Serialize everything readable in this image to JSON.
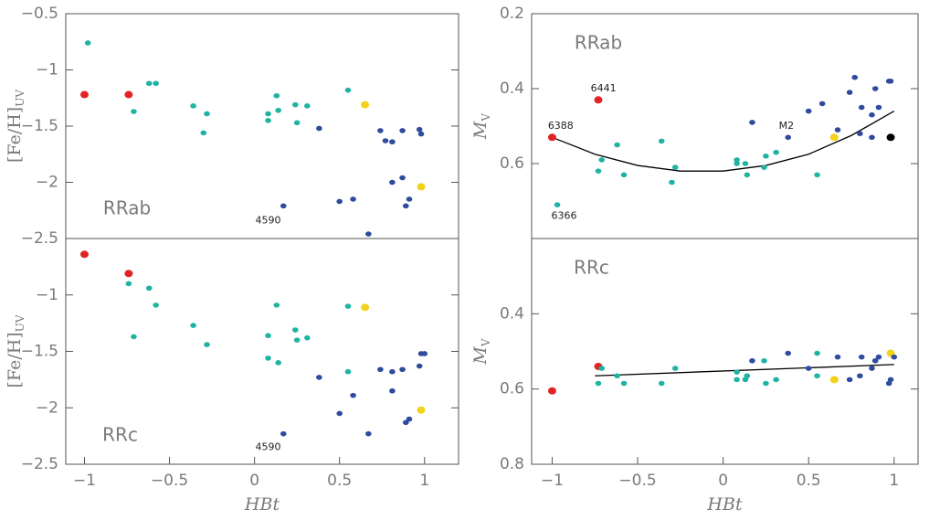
{
  "chart_data": [
    {
      "type": "scatter",
      "ylabel": "[Fe/H]",
      "ylabel_sub": "UV",
      "xlim": [
        -1.11,
        1.2
      ],
      "ylim": [
        -0.5,
        -2.5
      ],
      "yticks": [
        {
          "value": -0.5,
          "label": "−0.5"
        },
        {
          "value": -1,
          "label": "−1"
        },
        {
          "value": -1.5,
          "label": "−1.5"
        },
        {
          "value": -2,
          "label": "−2"
        },
        {
          "value": -2.5,
          "label": "−2.5"
        }
      ],
      "panel_label": {
        "text": "RRab",
        "x": -0.75,
        "y": -2.24
      },
      "annotations": [
        {
          "text": "4590",
          "x": 0.08,
          "y": -2.34
        }
      ],
      "series": [
        {
          "color": "#e02424",
          "x": [
            -1.0,
            -0.74
          ],
          "values": [
            -1.22,
            -1.22
          ]
        },
        {
          "color": "#1fb3a3",
          "x": [
            -0.98,
            -0.71,
            -0.62,
            -0.58,
            -0.36,
            -0.3,
            -0.28,
            0.08,
            0.08,
            0.13,
            0.14,
            0.24,
            0.25,
            0.31,
            0.55
          ],
          "values": [
            -0.76,
            -1.37,
            -1.12,
            -1.12,
            -1.32,
            -1.56,
            -1.39,
            -1.39,
            -1.45,
            -1.23,
            -1.36,
            -1.31,
            -1.47,
            -1.32,
            -1.18
          ]
        },
        {
          "color": "#f2d21a",
          "x": [
            0.65,
            0.98
          ],
          "values": [
            -1.31,
            -2.04
          ]
        },
        {
          "color": "#2e4b9e",
          "x": [
            0.38,
            0.17,
            0.5,
            0.58,
            0.67,
            0.74,
            0.77,
            0.81,
            0.81,
            0.87,
            0.87,
            0.89,
            0.91,
            0.97,
            0.98
          ],
          "values": [
            -1.52,
            -2.21,
            -2.17,
            -2.15,
            -2.46,
            -1.54,
            -1.63,
            -1.64,
            -2.0,
            -1.54,
            -1.96,
            -2.21,
            -2.15,
            -1.53,
            -1.57
          ]
        }
      ]
    },
    {
      "type": "scatter",
      "ylabel": "M",
      "ylabel_sub": "V",
      "xlim": [
        -1.12,
        1.14
      ],
      "ylim": [
        0.2,
        0.8
      ],
      "yticks": [
        0.2,
        0.4,
        0.6
      ],
      "panel_label": {
        "text": "RRab",
        "x": -0.73,
        "y": 0.28
      },
      "annotations": [
        {
          "text": "6388",
          "x": -0.95,
          "y": 0.5
        },
        {
          "text": "6441",
          "x": -0.7,
          "y": 0.4
        },
        {
          "text": "M2",
          "x": 0.37,
          "y": 0.5
        },
        {
          "text": "6366",
          "x": -0.93,
          "y": 0.74
        }
      ],
      "series": [
        {
          "color": "#e02424",
          "x": [
            -1.0,
            -0.73
          ],
          "values": [
            0.53,
            0.43
          ]
        },
        {
          "color": "#1fb3a3",
          "x": [
            -0.97,
            -0.73,
            -0.71,
            -0.62,
            -0.58,
            -0.36,
            -0.3,
            -0.28,
            0.08,
            0.08,
            0.13,
            0.14,
            0.24,
            0.25,
            0.31,
            0.55
          ],
          "values": [
            0.71,
            0.62,
            0.59,
            0.55,
            0.63,
            0.54,
            0.65,
            0.61,
            0.59,
            0.6,
            0.6,
            0.63,
            0.61,
            0.58,
            0.57,
            0.63
          ]
        },
        {
          "color": "#f2d21a",
          "x": [
            0.65
          ],
          "values": [
            0.53
          ]
        },
        {
          "color": "#2e4b9e",
          "x": [
            0.17,
            0.38,
            0.5,
            0.58,
            0.67,
            0.74,
            0.77,
            0.8,
            0.81,
            0.87,
            0.89,
            0.91,
            0.97,
            0.98,
            0.87
          ],
          "values": [
            0.49,
            0.53,
            0.46,
            0.44,
            0.51,
            0.41,
            0.37,
            0.52,
            0.45,
            0.47,
            0.4,
            0.45,
            0.38,
            0.38,
            0.53
          ]
        },
        {
          "color": "#000000",
          "x": [
            0.98
          ],
          "values": [
            0.53
          ]
        }
      ],
      "lines": [
        {
          "color": "#000000",
          "x": [
            -1.0,
            -0.75,
            -0.5,
            -0.25,
            0,
            0.25,
            0.5,
            0.75,
            1.0
          ],
          "values": [
            0.53,
            0.575,
            0.605,
            0.62,
            0.62,
            0.605,
            0.575,
            0.525,
            0.46
          ]
        }
      ]
    },
    {
      "type": "scatter",
      "ylabel": "[Fe/H]",
      "ylabel_sub": "UV",
      "xlabel": "HBt",
      "xlim": [
        -1.11,
        1.2
      ],
      "ylim": [
        -0.5,
        -2.5
      ],
      "xticks": [
        {
          "value": -1,
          "label": "−1"
        },
        {
          "value": -0.5,
          "label": "−0.5"
        },
        0,
        0.5,
        1
      ],
      "yticks": [
        {
          "value": -1,
          "label": "−1"
        },
        {
          "value": -1.5,
          "label": "−1.5"
        },
        {
          "value": -2,
          "label": "−2"
        },
        {
          "value": -2.5,
          "label": "−2.5"
        }
      ],
      "panel_label": {
        "text": "RRc",
        "x": -0.79,
        "y": -2.25
      },
      "annotations": [
        {
          "text": "4590",
          "x": 0.08,
          "y": -2.35
        }
      ],
      "series": [
        {
          "color": "#e02424",
          "x": [
            -1.0,
            -0.74
          ],
          "values": [
            -0.64,
            -0.81
          ]
        },
        {
          "color": "#1fb3a3",
          "x": [
            -0.74,
            -0.71,
            -0.62,
            -0.58,
            -0.36,
            -0.28,
            0.08,
            0.08,
            0.13,
            0.14,
            0.24,
            0.25,
            0.31,
            0.55,
            0.55
          ],
          "values": [
            -0.9,
            -1.37,
            -0.94,
            -1.09,
            -1.27,
            -1.44,
            -1.36,
            -1.56,
            -1.09,
            -1.6,
            -1.31,
            -1.4,
            -1.38,
            -1.1,
            -1.68
          ]
        },
        {
          "color": "#f2d21a",
          "x": [
            0.65,
            0.98
          ],
          "values": [
            -1.11,
            -2.02
          ]
        },
        {
          "color": "#2e4b9e",
          "x": [
            0.38,
            0.17,
            0.5,
            0.58,
            0.67,
            0.74,
            0.81,
            0.81,
            0.87,
            0.89,
            0.91,
            0.97,
            0.98,
            1.0
          ],
          "values": [
            -1.73,
            -2.23,
            -2.05,
            -1.89,
            -2.23,
            -1.66,
            -1.68,
            -1.85,
            -1.66,
            -2.13,
            -2.1,
            -1.63,
            -1.52,
            -1.52
          ]
        }
      ]
    },
    {
      "type": "scatter",
      "ylabel": "M",
      "ylabel_sub": "V",
      "xlabel": "HBt",
      "xlim": [
        -1.12,
        1.14
      ],
      "ylim": [
        0.2,
        0.8
      ],
      "xticks": [
        {
          "value": -1,
          "label": "−1"
        },
        {
          "value": -0.5,
          "label": "−0.5"
        },
        0,
        0.5,
        1
      ],
      "yticks": [
        0.4,
        0.6,
        0.8
      ],
      "panel_label": {
        "text": "RRc",
        "x": -0.77,
        "y": 0.28
      },
      "annotations": [],
      "series": [
        {
          "color": "#e02424",
          "x": [
            -1.0,
            -0.73
          ],
          "values": [
            0.605,
            0.54
          ]
        },
        {
          "color": "#1fb3a3",
          "x": [
            -0.73,
            -0.71,
            -0.62,
            -0.58,
            -0.36,
            -0.28,
            0.08,
            0.08,
            0.13,
            0.14,
            0.24,
            0.25,
            0.31,
            0.55,
            0.55
          ],
          "values": [
            0.585,
            0.545,
            0.565,
            0.585,
            0.585,
            0.545,
            0.555,
            0.575,
            0.575,
            0.565,
            0.525,
            0.585,
            0.575,
            0.505,
            0.565
          ]
        },
        {
          "color": "#f2d21a",
          "x": [
            0.65,
            0.98
          ],
          "values": [
            0.575,
            0.505
          ]
        },
        {
          "color": "#2e4b9e",
          "x": [
            0.17,
            0.38,
            0.5,
            0.67,
            0.74,
            0.8,
            0.81,
            0.87,
            0.89,
            0.91,
            0.97,
            0.98,
            1.0
          ],
          "values": [
            0.525,
            0.505,
            0.545,
            0.515,
            0.575,
            0.565,
            0.515,
            0.545,
            0.525,
            0.515,
            0.585,
            0.575,
            0.515
          ]
        }
      ],
      "lines": [
        {
          "color": "#000000",
          "x": [
            -0.75,
            1.0
          ],
          "values": [
            0.565,
            0.535
          ]
        }
      ]
    }
  ]
}
